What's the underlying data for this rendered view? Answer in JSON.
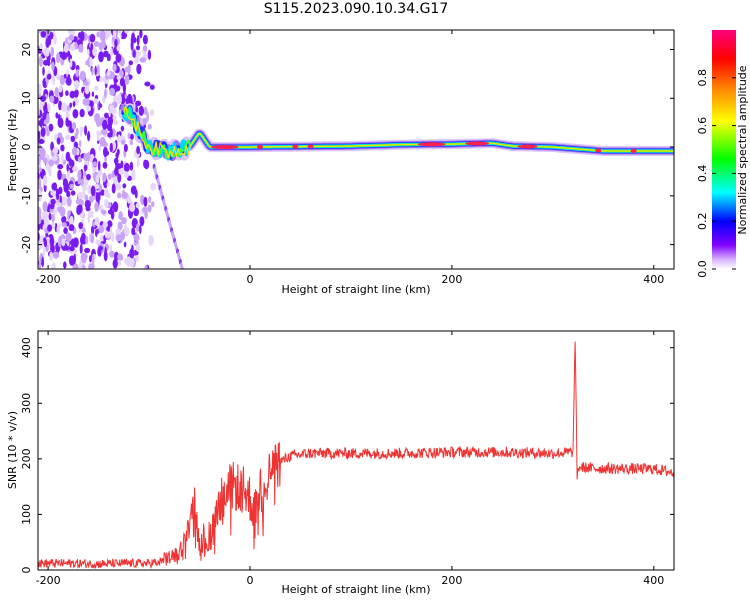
{
  "title": "S115.2023.090.10.34.G17",
  "chart_data": [
    {
      "type": "heatmap",
      "title": "S115.2023.090.10.34.G17",
      "xlabel": "Height of straight line (km)",
      "ylabel": "Frequency (Hz)",
      "xlim": [
        -210,
        420
      ],
      "ylim": [
        -25,
        24
      ],
      "xticks": [
        -200,
        0,
        200,
        400
      ],
      "yticks": [
        -20,
        -10,
        0,
        10,
        20
      ],
      "colorbar": {
        "label": "Normalized spectral amplitude",
        "range": [
          0,
          1
        ],
        "ticks": [
          0.0,
          0.2,
          0.4,
          0.6,
          0.8
        ],
        "colormap": [
          "#ffffff",
          "#d9b3ff",
          "#8000ff",
          "#0000ff",
          "#00ffff",
          "#00ff00",
          "#ffff00",
          "#ff8000",
          "#ff0000",
          "#ff0080"
        ]
      },
      "ridge": {
        "x": [
          -120,
          -100,
          -80,
          -60,
          -50,
          -40,
          0,
          100,
          150,
          200,
          240,
          260,
          300,
          350,
          420
        ],
        "frequency": [
          7,
          0,
          -1,
          0,
          3,
          0,
          0,
          0.2,
          0.5,
          0.6,
          0.8,
          0.2,
          0,
          -0.8,
          -0.8
        ]
      },
      "noise_region_x": [
        -210,
        -110
      ],
      "grid": false
    },
    {
      "type": "line",
      "xlabel": "Height of straight line (km)",
      "ylabel": "SNR (10 * v/v)",
      "xlim": [
        -210,
        420
      ],
      "ylim": [
        0,
        430
      ],
      "xticks": [
        -200,
        0,
        200,
        400
      ],
      "yticks": [
        0,
        100,
        200,
        300,
        400
      ],
      "color": "#ee3333",
      "x": [
        -210,
        -180,
        -150,
        -120,
        -100,
        -90,
        -70,
        -60,
        -55,
        -50,
        -40,
        -30,
        -20,
        -10,
        0,
        5,
        10,
        20,
        30,
        40,
        60,
        100,
        150,
        200,
        250,
        300,
        320,
        322,
        324,
        326,
        340,
        380,
        400,
        420
      ],
      "values": [
        12,
        12,
        11,
        12,
        12,
        15,
        30,
        80,
        120,
        50,
        60,
        120,
        150,
        150,
        130,
        100,
        150,
        175,
        195,
        205,
        210,
        210,
        210,
        212,
        212,
        210,
        212,
        420,
        170,
        185,
        183,
        182,
        182,
        175
      ],
      "grid": false
    }
  ]
}
